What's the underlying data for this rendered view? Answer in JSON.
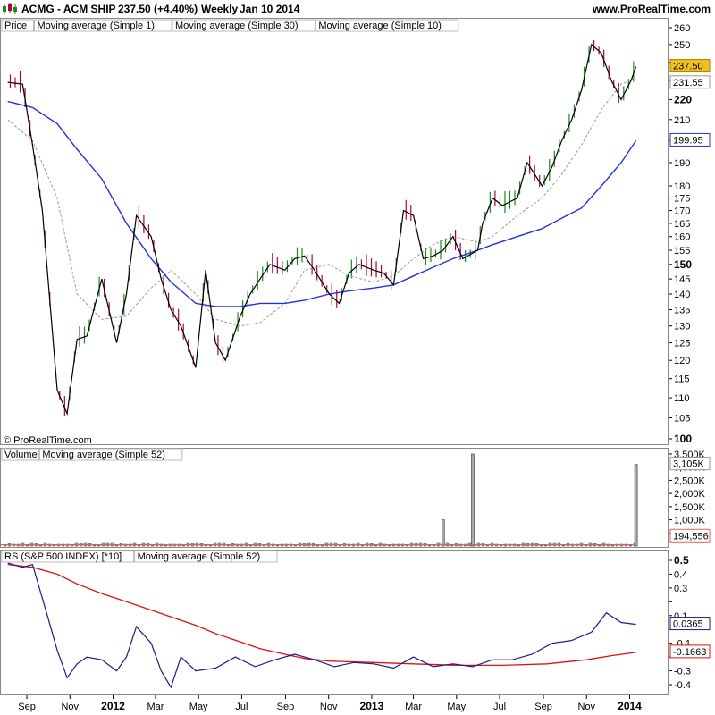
{
  "header": {
    "symbol": "ACMG - ACM SHIP",
    "quote": "237.50 (+4.40%)",
    "period": "Weekly",
    "date": "Jan 10 2014",
    "site": "www.ProRealTime.com"
  },
  "copyright": "© ProRealTime.com",
  "price_panel": {
    "legend": [
      "Price",
      "Moving average (Simple 1)",
      "Moving average (Simple 30)",
      "Moving average (Simple 10)"
    ],
    "badges": {
      "last": "237.50",
      "ma10": "231.55",
      "ma30": "199.95"
    },
    "y_ticks": [
      100,
      105,
      110,
      115,
      120,
      125,
      130,
      135,
      140,
      145,
      150,
      155,
      160,
      165,
      170,
      175,
      180,
      190,
      200,
      210,
      220,
      230,
      240,
      250,
      260
    ],
    "y_tick_labels": [
      "100",
      "105",
      "110",
      "115",
      "120",
      "125",
      "130",
      "135",
      "140",
      "145",
      "150",
      "155",
      "160",
      "165",
      "170",
      "175",
      "180",
      "190",
      "",
      "210",
      "220",
      "",
      "",
      "250",
      "260"
    ],
    "bold_ticks": [
      "100",
      "150",
      "220"
    ]
  },
  "volume_panel": {
    "legend": [
      "Volume",
      "Moving average (Simple 52)"
    ],
    "y_tick_labels": [
      "500,000",
      "1,000K",
      "1,500K",
      "2,000K",
      "2,500K",
      "3,000K",
      "3,500K"
    ],
    "badges": {
      "last": "3,105K",
      "ma52": "194,556"
    }
  },
  "rs_panel": {
    "legend": [
      "RS (S&P 500 INDEX) [*10]",
      "Moving average (Simple 52)"
    ],
    "y_tick_labels": [
      "0.5",
      "0.4",
      "0.3",
      "0.2",
      "0.1",
      "0",
      "-0.1",
      "-0.2",
      "-0.3",
      "-0.4"
    ],
    "badges": {
      "rs": "0.0365",
      "ma52": "-0.1663"
    }
  },
  "x_axis": {
    "labels": [
      "Sep",
      "Nov",
      "2012",
      "Mar",
      "May",
      "Jul",
      "Sep",
      "Nov",
      "2013",
      "Mar",
      "May",
      "Jul",
      "Sep",
      "Nov",
      "2014"
    ],
    "bold": [
      "2012",
      "2013",
      "2014"
    ]
  },
  "colors": {
    "up": "#1a8a1a",
    "down": "#b0003a",
    "ma1": "#000000",
    "ma30": "#2233dd",
    "ma10": "#999999",
    "badge_last": "#f0c020",
    "vol_ma": "#e06060",
    "rs": "#1a1a8c",
    "rs_ma": "#dd1111"
  },
  "chart_data": [
    {
      "type": "line",
      "title": "ACMG - ACM SHIP",
      "ylabel": "Price",
      "ylim": [
        100,
        262
      ],
      "log_scale": true,
      "series": [
        {
          "name": "Moving average (Simple 1)",
          "x": [
            "2011-08-05",
            "2011-08-26",
            "2011-09-09",
            "2011-09-23",
            "2011-10-14",
            "2011-10-28",
            "2011-11-11",
            "2011-11-25",
            "2011-12-16",
            "2012-01-06",
            "2012-01-20",
            "2012-02-03",
            "2012-02-24",
            "2012-03-09",
            "2012-03-23",
            "2012-04-06",
            "2012-04-27",
            "2012-05-11",
            "2012-05-25",
            "2012-06-08",
            "2012-06-29",
            "2012-07-13",
            "2012-07-27",
            "2012-08-10",
            "2012-08-31",
            "2012-09-14",
            "2012-09-28",
            "2012-10-12",
            "2012-11-02",
            "2012-11-16",
            "2012-11-30",
            "2012-12-14",
            "2013-01-04",
            "2013-01-18",
            "2013-02-01",
            "2013-02-15",
            "2013-03-01",
            "2013-03-15",
            "2013-03-29",
            "2013-04-12",
            "2013-04-26",
            "2013-05-10",
            "2013-05-31",
            "2013-06-07",
            "2013-06-21",
            "2013-07-05",
            "2013-07-26",
            "2013-08-09",
            "2013-08-30",
            "2013-09-13",
            "2013-09-27",
            "2013-10-11",
            "2013-10-25",
            "2013-11-08",
            "2013-11-22",
            "2013-12-06",
            "2013-12-20",
            "2014-01-03",
            "2014-01-10"
          ],
          "y": [
            229,
            228,
            198,
            170,
            112,
            106,
            126,
            127,
            145,
            125,
            140,
            168,
            160,
            145,
            135,
            130,
            118,
            148,
            125,
            120,
            133,
            140,
            145,
            150,
            148,
            152,
            153,
            148,
            140,
            137,
            147,
            150,
            148,
            147,
            143,
            170,
            168,
            152,
            153,
            155,
            160,
            152,
            155,
            165,
            175,
            172,
            175,
            190,
            180,
            188,
            200,
            210,
            225,
            250,
            245,
            230,
            220,
            230,
            237.5
          ]
        },
        {
          "name": "Moving average (Simple 30)",
          "x": [
            "2011-08-05",
            "2011-09-09",
            "2011-10-14",
            "2011-11-11",
            "2011-12-16",
            "2012-01-20",
            "2012-02-24",
            "2012-03-23",
            "2012-04-27",
            "2012-05-25",
            "2012-06-29",
            "2012-07-27",
            "2012-08-31",
            "2012-09-28",
            "2012-11-02",
            "2012-11-30",
            "2013-01-04",
            "2013-02-01",
            "2013-03-01",
            "2013-03-29",
            "2013-04-26",
            "2013-05-31",
            "2013-06-21",
            "2013-07-26",
            "2013-08-30",
            "2013-09-27",
            "2013-10-25",
            "2013-11-22",
            "2013-12-20",
            "2014-01-10"
          ],
          "y": [
            219,
            216,
            208,
            196,
            183,
            165,
            152,
            144,
            137,
            136,
            136,
            137,
            137,
            138,
            140,
            141,
            142,
            143,
            146,
            149,
            152,
            155,
            157,
            160,
            163,
            167,
            171,
            180,
            190,
            199.95
          ]
        },
        {
          "name": "Moving average (Simple 10)",
          "x": [
            "2011-08-05",
            "2011-09-09",
            "2011-10-14",
            "2011-11-11",
            "2011-12-16",
            "2012-01-20",
            "2012-02-24",
            "2012-03-23",
            "2012-04-27",
            "2012-05-25",
            "2012-06-29",
            "2012-07-27",
            "2012-08-31",
            "2012-09-28",
            "2012-11-02",
            "2012-11-30",
            "2013-01-04",
            "2013-02-01",
            "2013-03-01",
            "2013-03-29",
            "2013-04-26",
            "2013-05-31",
            "2013-06-21",
            "2013-07-26",
            "2013-08-30",
            "2013-09-27",
            "2013-10-25",
            "2013-11-22",
            "2013-12-20",
            "2014-01-10"
          ],
          "y": [
            210,
            200,
            175,
            140,
            132,
            133,
            142,
            148,
            140,
            132,
            130,
            131,
            137,
            148,
            150,
            146,
            144,
            146,
            152,
            157,
            160,
            158,
            160,
            168,
            175,
            185,
            198,
            215,
            228,
            231.55
          ]
        }
      ]
    },
    {
      "type": "bar",
      "title": "Volume",
      "ylim": [
        0,
        3500000
      ],
      "notable_values": [
        {
          "x": "2013-04-12",
          "value": 1000000
        },
        {
          "x": "2013-05-24",
          "value": 3500000
        },
        {
          "x": "2014-01-10",
          "value": 3105000
        }
      ],
      "series": [
        {
          "name": "Moving average (Simple 52)",
          "last_value": 194556
        }
      ]
    },
    {
      "type": "line",
      "title": "RS (S&P 500 INDEX) [*10]",
      "ylim": [
        -0.45,
        0.55
      ],
      "series": [
        {
          "name": "RS (S&P 500 INDEX) [*10]",
          "x": [
            "2011-08-05",
            "2011-08-26",
            "2011-09-09",
            "2011-09-30",
            "2011-10-14",
            "2011-10-28",
            "2011-11-11",
            "2011-11-25",
            "2011-12-16",
            "2012-01-06",
            "2012-01-20",
            "2012-02-03",
            "2012-02-24",
            "2012-03-09",
            "2012-03-23",
            "2012-04-06",
            "2012-04-27",
            "2012-05-25",
            "2012-06-22",
            "2012-07-20",
            "2012-08-17",
            "2012-09-14",
            "2012-10-12",
            "2012-11-09",
            "2012-12-07",
            "2013-01-04",
            "2013-02-01",
            "2013-03-01",
            "2013-03-29",
            "2013-04-26",
            "2013-05-24",
            "2013-06-21",
            "2013-07-19",
            "2013-08-16",
            "2013-09-13",
            "2013-10-11",
            "2013-11-08",
            "2013-11-29",
            "2013-12-20",
            "2014-01-10"
          ],
          "y": [
            0.48,
            0.45,
            0.47,
            0.1,
            -0.15,
            -0.35,
            -0.25,
            -0.2,
            -0.22,
            -0.3,
            -0.2,
            0.02,
            -0.1,
            -0.3,
            -0.42,
            -0.2,
            -0.3,
            -0.28,
            -0.2,
            -0.27,
            -0.22,
            -0.18,
            -0.22,
            -0.27,
            -0.24,
            -0.25,
            -0.28,
            -0.2,
            -0.27,
            -0.25,
            -0.27,
            -0.22,
            -0.22,
            -0.18,
            -0.1,
            -0.08,
            -0.02,
            0.12,
            0.05,
            0.0365
          ]
        },
        {
          "name": "Moving average (Simple 52)",
          "x": [
            "2011-08-05",
            "2011-09-09",
            "2011-10-14",
            "2011-11-11",
            "2011-12-16",
            "2012-01-20",
            "2012-02-24",
            "2012-03-23",
            "2012-04-27",
            "2012-05-25",
            "2012-06-29",
            "2012-07-27",
            "2012-08-31",
            "2012-09-28",
            "2012-11-02",
            "2013-01-04",
            "2013-03-01",
            "2013-05-03",
            "2013-07-05",
            "2013-09-06",
            "2013-11-01",
            "2013-12-06",
            "2014-01-10"
          ],
          "y": [
            0.47,
            0.45,
            0.4,
            0.33,
            0.26,
            0.2,
            0.14,
            0.09,
            0.03,
            -0.03,
            -0.09,
            -0.14,
            -0.18,
            -0.21,
            -0.23,
            -0.24,
            -0.25,
            -0.26,
            -0.26,
            -0.25,
            -0.22,
            -0.19,
            -0.1663
          ]
        }
      ]
    }
  ]
}
